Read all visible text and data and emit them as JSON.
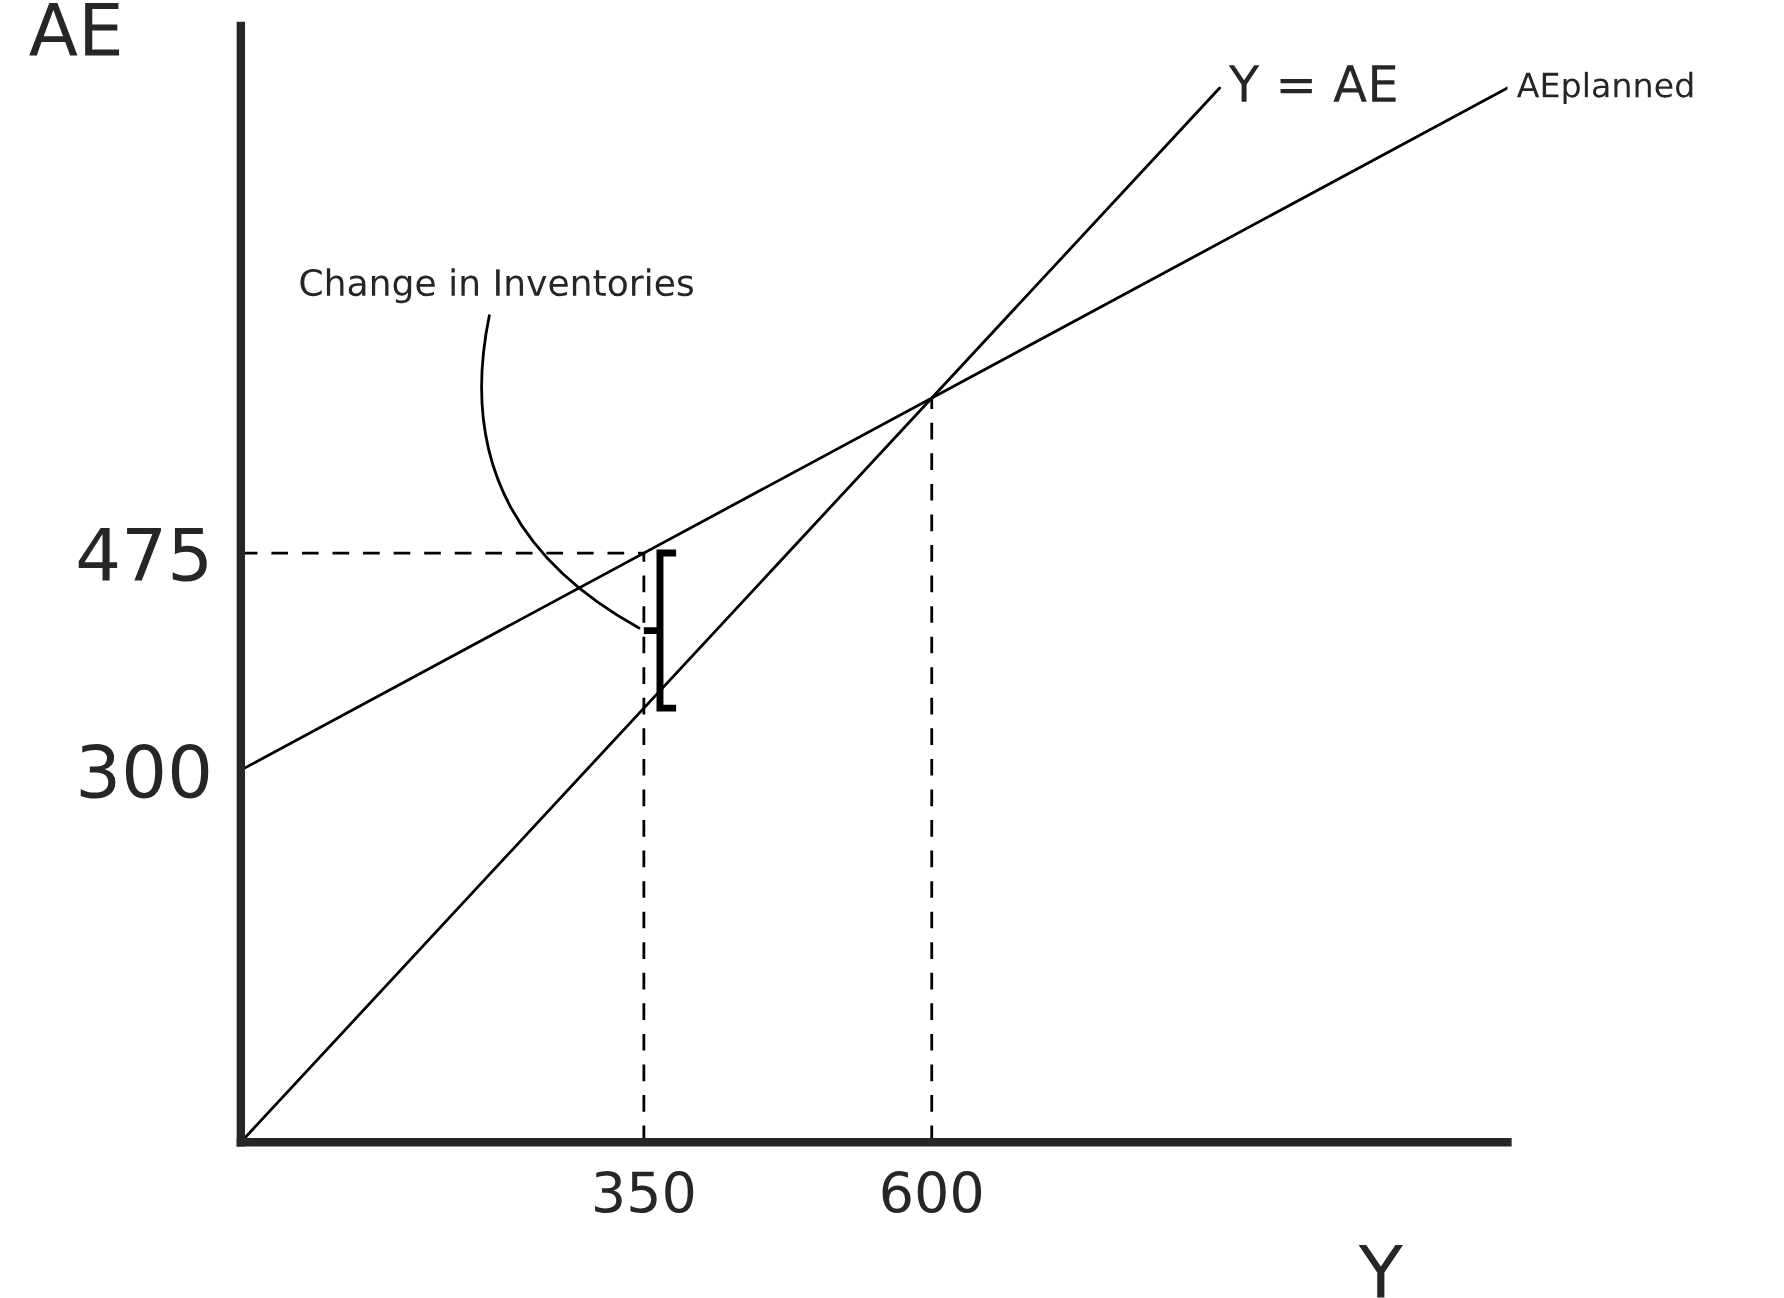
{
  "chart_data": {
    "type": "line",
    "xlabel": "Y",
    "ylabel": "AE",
    "xlim": [
      0,
      1100
    ],
    "ylim": [
      0,
      900
    ],
    "xticks": [
      350,
      600
    ],
    "yticks": [
      300,
      475
    ],
    "grid": false,
    "legend": false,
    "series": [
      {
        "name": "Y = AE",
        "color": "#000000",
        "x": [
          0,
          850
        ],
        "values": [
          0,
          850
        ]
      },
      {
        "name": "AEplanned",
        "color": "#000000",
        "x": [
          0,
          1100
        ],
        "values": [
          300,
          850
        ]
      },
      {
        "color": "#000000",
        "line_style": "dashed",
        "x": [
          0,
          350
        ],
        "values": [
          475,
          475
        ]
      },
      {
        "color": "#000000",
        "line_style": "dashed",
        "x": [
          350,
          350
        ],
        "values": [
          0,
          475
        ]
      },
      {
        "color": "#000000",
        "line_style": "dashed",
        "x": [
          600,
          600
        ],
        "values": [
          0,
          600
        ]
      }
    ],
    "annotations": [
      {
        "text": "Change in Inventories",
        "x": 350,
        "y": 412.5
      }
    ]
  }
}
